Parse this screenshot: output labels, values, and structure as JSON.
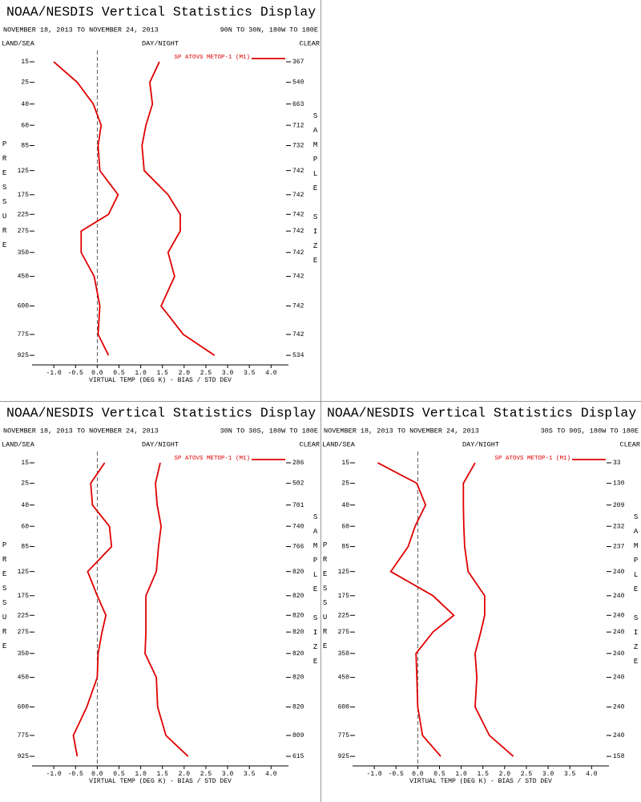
{
  "chart_data": [
    {
      "type": "profile",
      "title": "NOAA/NESDIS Vertical Statistics Display",
      "subtitle": "NOVEMBER 18, 2013 TO NOVEMBER 24, 2013",
      "region": "90N TO 30N, 180W TO 180E",
      "land_sea": "LAND/SEA",
      "day_night": "DAY/NIGHT",
      "clear": "CLEAR",
      "xlabel": "VIRTUAL TEMP (DEG K) - BIAS / STD DEV",
      "ylabel": "PRESSURE",
      "y2label": "SAMPLE SIZE",
      "xlim": [
        -1.5,
        4.4
      ],
      "ylim": [
        12,
        1000
      ],
      "xticks": [
        {
          "value": -1,
          "label": "-1.0"
        },
        -0.5,
        {
          "value": 0,
          "label": "0.0"
        },
        0.5,
        {
          "value": 1,
          "label": "1.0"
        },
        1.5,
        {
          "value": 2,
          "label": "2.0"
        },
        2.5,
        {
          "value": 3,
          "label": "3.0"
        },
        3.5,
        {
          "value": 4,
          "label": "4.0"
        }
      ],
      "y": [
        15,
        25,
        40,
        60,
        85,
        125,
        175,
        225,
        275,
        350,
        450,
        600,
        775,
        925
      ],
      "sample_size": [
        367,
        540,
        663,
        712,
        732,
        742,
        742,
        742,
        742,
        742,
        742,
        742,
        742,
        534
      ],
      "series": [
        {
          "name": "SP ATOVS METOP-1 (M1)",
          "color": "#e00000",
          "bias": [
            -1.0,
            -0.46,
            -0.09,
            0.09,
            0.02,
            0.06,
            0.48,
            0.26,
            -0.37,
            -0.37,
            -0.07,
            0.06,
            0.02,
            0.26
          ],
          "std_dev": [
            1.43,
            1.21,
            1.27,
            1.12,
            1.03,
            1.08,
            1.63,
            1.91,
            1.91,
            1.63,
            1.78,
            1.47,
            1.98,
            2.7
          ]
        }
      ]
    },
    {
      "type": "profile",
      "title": "NOAA/NESDIS Vertical Statistics Display",
      "subtitle": "NOVEMBER 18, 2013 TO NOVEMBER 24, 2013",
      "region": "30N TO 30S, 180W TO 180E",
      "land_sea": "LAND/SEA",
      "day_night": "DAY/NIGHT",
      "clear": "CLEAR",
      "xlabel": "VIRTUAL TEMP (DEG K) - BIAS / STD DEV",
      "ylabel": "PRESSURE",
      "y2label": "SAMPLE SIZE",
      "xlim": [
        -1.5,
        4.4
      ],
      "ylim": [
        12,
        1000
      ],
      "xticks": [
        {
          "value": -1,
          "label": "-1.0"
        },
        -0.5,
        {
          "value": 0,
          "label": "0.0"
        },
        0.5,
        {
          "value": 1,
          "label": "1.0"
        },
        1.5,
        {
          "value": 2,
          "label": "2.0"
        },
        2.5,
        {
          "value": 3,
          "label": "3.0"
        },
        3.5,
        {
          "value": 4,
          "label": "4.0"
        }
      ],
      "y": [
        15,
        25,
        40,
        60,
        85,
        125,
        175,
        225,
        275,
        350,
        450,
        600,
        775,
        925
      ],
      "sample_size": [
        286,
        502,
        701,
        740,
        766,
        820,
        820,
        820,
        820,
        820,
        820,
        820,
        809,
        615
      ],
      "series": [
        {
          "name": "SP ATOVS METOP-1 (M1)",
          "color": "#e00000",
          "bias": [
            0.17,
            -0.15,
            -0.11,
            0.28,
            0.33,
            -0.22,
            0,
            0.2,
            0.11,
            0.02,
            0,
            -0.24,
            -0.55,
            -0.46
          ],
          "std_dev": [
            1.45,
            1.34,
            1.38,
            1.47,
            1.41,
            1.36,
            1.12,
            1.12,
            1.12,
            1.1,
            1.36,
            1.39,
            1.58,
            2.09
          ]
        }
      ]
    },
    {
      "type": "profile",
      "title": "NOAA/NESDIS Vertical Statistics Display",
      "subtitle": "NOVEMBER 18, 2013 TO NOVEMBER 24, 2013",
      "region": "30S TO 90S, 180W TO 180E",
      "land_sea": "LAND/SEA",
      "day_night": "DAY/NIGHT",
      "clear": "CLEAR",
      "xlabel": "VIRTUAL TEMP (DEG K) - BIAS / STD DEV",
      "ylabel": "PRESSURE",
      "y2label": "SAMPLE SIZE",
      "xlim": [
        -1.5,
        4.4
      ],
      "ylim": [
        12,
        1000
      ],
      "xticks": [
        {
          "value": -1,
          "label": "-1.0"
        },
        -0.5,
        {
          "value": 0,
          "label": "0.0"
        },
        0.5,
        {
          "value": 1,
          "label": "1.0"
        },
        1.5,
        {
          "value": 2,
          "label": "2.0"
        },
        2.5,
        {
          "value": 3,
          "label": "3.0"
        },
        3.5,
        {
          "value": 4,
          "label": "4.0"
        }
      ],
      "y": [
        15,
        25,
        40,
        60,
        85,
        125,
        175,
        225,
        275,
        350,
        450,
        600,
        775,
        925
      ],
      "sample_size": [
        33,
        130,
        209,
        232,
        237,
        240,
        240,
        240,
        240,
        240,
        240,
        240,
        240,
        158
      ],
      "series": [
        {
          "name": "SP ATOVS METOP-1 (M1)",
          "color": "#e00000",
          "bias": [
            -0.92,
            -0.02,
            0.18,
            -0.06,
            -0.22,
            -0.62,
            0.35,
            0.83,
            0.35,
            -0.04,
            -0.02,
            0,
            0.11,
            0.53
          ],
          "std_dev": [
            1.32,
            1.05,
            1.05,
            1.06,
            1.08,
            1.16,
            1.54,
            1.54,
            1.45,
            1.32,
            1.36,
            1.32,
            1.65,
            2.2
          ]
        }
      ]
    }
  ]
}
